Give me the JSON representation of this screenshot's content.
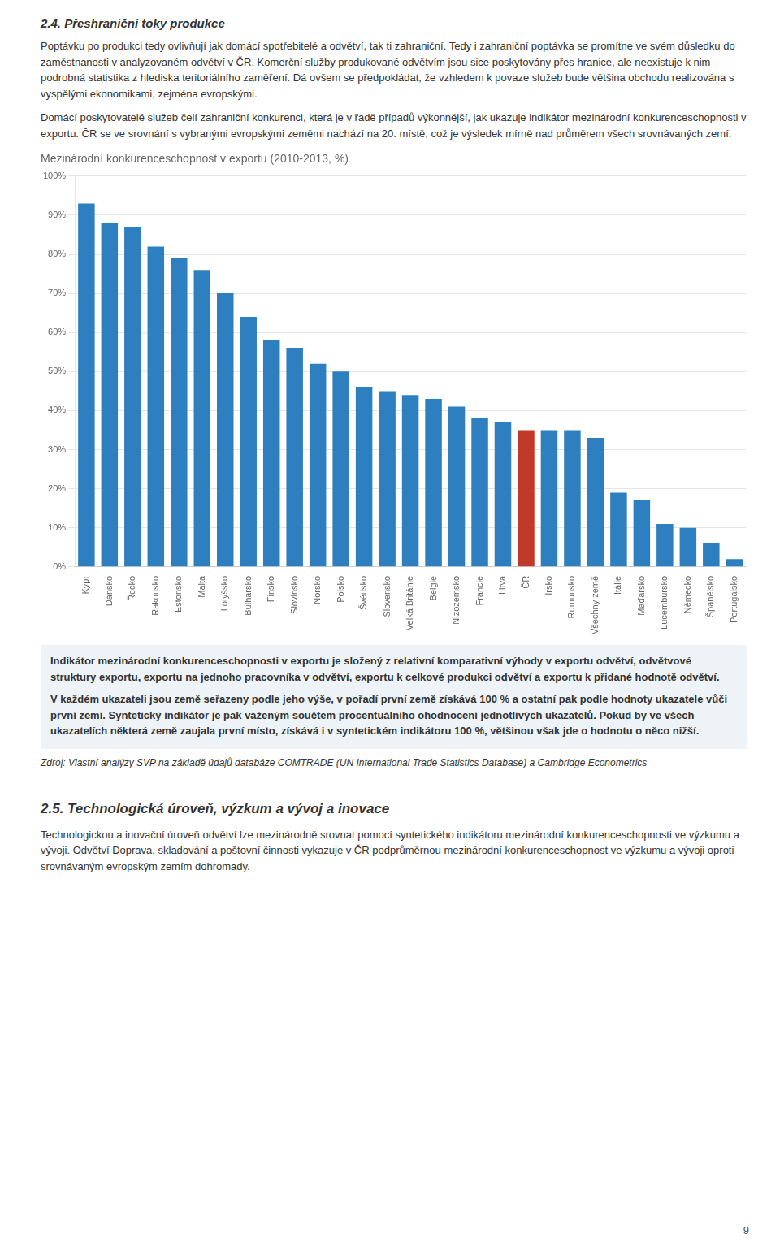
{
  "chart_data": {
    "type": "bar",
    "title": "Mezinárodní konkurenceschopnost v exportu (2010-2013, %)",
    "categories": [
      "Kypr",
      "Dánsko",
      "Řecko",
      "Rakousko",
      "Estonsko",
      "Malta",
      "Lotyšsko",
      "Bulharsko",
      "Finsko",
      "Slovinsko",
      "Norsko",
      "Polsko",
      "Švédsko",
      "Slovensko",
      "Velká Británie",
      "Belgie",
      "Nizozemsko",
      "Francie",
      "Litva",
      "ČR",
      "Irsko",
      "Rumunsko",
      "Všechny země",
      "Itálie",
      "Maďarsko",
      "Lucembursko",
      "Německo",
      "Španělsko",
      "Portugalsko"
    ],
    "values": [
      93,
      88,
      87,
      82,
      79,
      76,
      70,
      64,
      58,
      56,
      52,
      50,
      46,
      45,
      44,
      43,
      41,
      38,
      37,
      35,
      35,
      35,
      33,
      19,
      17,
      11,
      10,
      6,
      2
    ],
    "colors": [
      "#2E7FBF",
      "#2E7FBF",
      "#2E7FBF",
      "#2E7FBF",
      "#2E7FBF",
      "#2E7FBF",
      "#2E7FBF",
      "#2E7FBF",
      "#2E7FBF",
      "#2E7FBF",
      "#2E7FBF",
      "#2E7FBF",
      "#2E7FBF",
      "#2E7FBF",
      "#2E7FBF",
      "#2E7FBF",
      "#2E7FBF",
      "#2E7FBF",
      "#2E7FBF",
      "#C0392B",
      "#2E7FBF",
      "#2E7FBF",
      "#2E7FBF",
      "#2E7FBF",
      "#2E7FBF",
      "#2E7FBF",
      "#2E7FBF",
      "#2E7FBF",
      "#2E7FBF"
    ],
    "ylim": [
      0,
      100
    ],
    "yticks": [
      {
        "value": 0,
        "label": "0%"
      },
      {
        "value": 10,
        "label": "10%"
      },
      {
        "value": 20,
        "label": "20%"
      },
      {
        "value": 30,
        "label": "30%"
      },
      {
        "value": 40,
        "label": "40%"
      },
      {
        "value": 50,
        "label": "50%"
      },
      {
        "value": 60,
        "label": "60%"
      },
      {
        "value": 70,
        "label": "70%"
      },
      {
        "value": 80,
        "label": "80%"
      },
      {
        "value": 90,
        "label": "90%"
      },
      {
        "value": 100,
        "label": "100%"
      }
    ],
    "grid": true,
    "annotations": [
      "2.4. Přeshraniční toky produkce",
      "Poptávku po produkci tedy ovlivňují jak domácí spotřebitelé a odvětví, tak ti zahraniční. Tedy i zahraniční poptávka se promítne ve svém důsledku do zaměstnanosti v analyzovaném odvětví v ČR. Komerční služby produkované odvětvím jsou sice poskytovány přes hranice, ale neexistuje k nim podrobná statistika z hlediska teritoriálního zaměření. Dá ovšem se předpokládat, že vzhledem k povaze služeb bude většina obchodu realizována s vyspělými ekonomikami, zejména evropskými.",
      "Domácí poskytovatelé služeb čelí zahraniční konkurenci, která je v řadě případů výkonnější, jak ukazuje indikátor mezinárodní konkurenceschopnosti v exportu. ČR se ve srovnání s vybranými evropskými zeměmi nachází na 20. místě, což je výsledek mírně nad průměrem všech srovnávaných zemí.",
      "Indikátor mezinárodní konkurenceschopnosti v exportu je složený z relativní komparativní výhody v exportu odvětví, odvětvové struktury exportu, exportu na jednoho pracovníka v odvětví, exportu k celkové produkci odvětví a exportu k přidané hodnotě odvětví.",
      "V každém ukazateli jsou země seřazeny podle jeho výše, v pořadí první země získává 100 % a ostatní pak podle hodnoty ukazatele vůči první zemi. Syntetický indikátor je pak váženým součtem procentuálního ohodnocení jednotlivých ukazatelů. Pokud by ve všech ukazatelích některá země zaujala první místo, získává i v syntetickém indikátoru 100 %, většinou však jde o hodnotu o něco nižší.",
      "Zdroj:   Vlastní analýzy SVP na základě údajů databáze COMTRADE (UN International Trade Statistics Database) a Cambridge Econometrics",
      "2.5. Technologická úroveň, výzkum a vývoj a inovace",
      "Technologickou a inovační úroveň odvětví lze mezinárodně srovnat pomocí syntetického indikátoru mezinárodní konkurenceschopnosti ve výzkumu a vývoji. Odvětví Doprava, skladování a poštovní činnosti vykazuje v ČR podprůměrnou mezinárodní konkurenceschopnost ve výzkumu a vývoji oproti srovnávaným evropským zemím dohromady.",
      "9"
    ]
  }
}
